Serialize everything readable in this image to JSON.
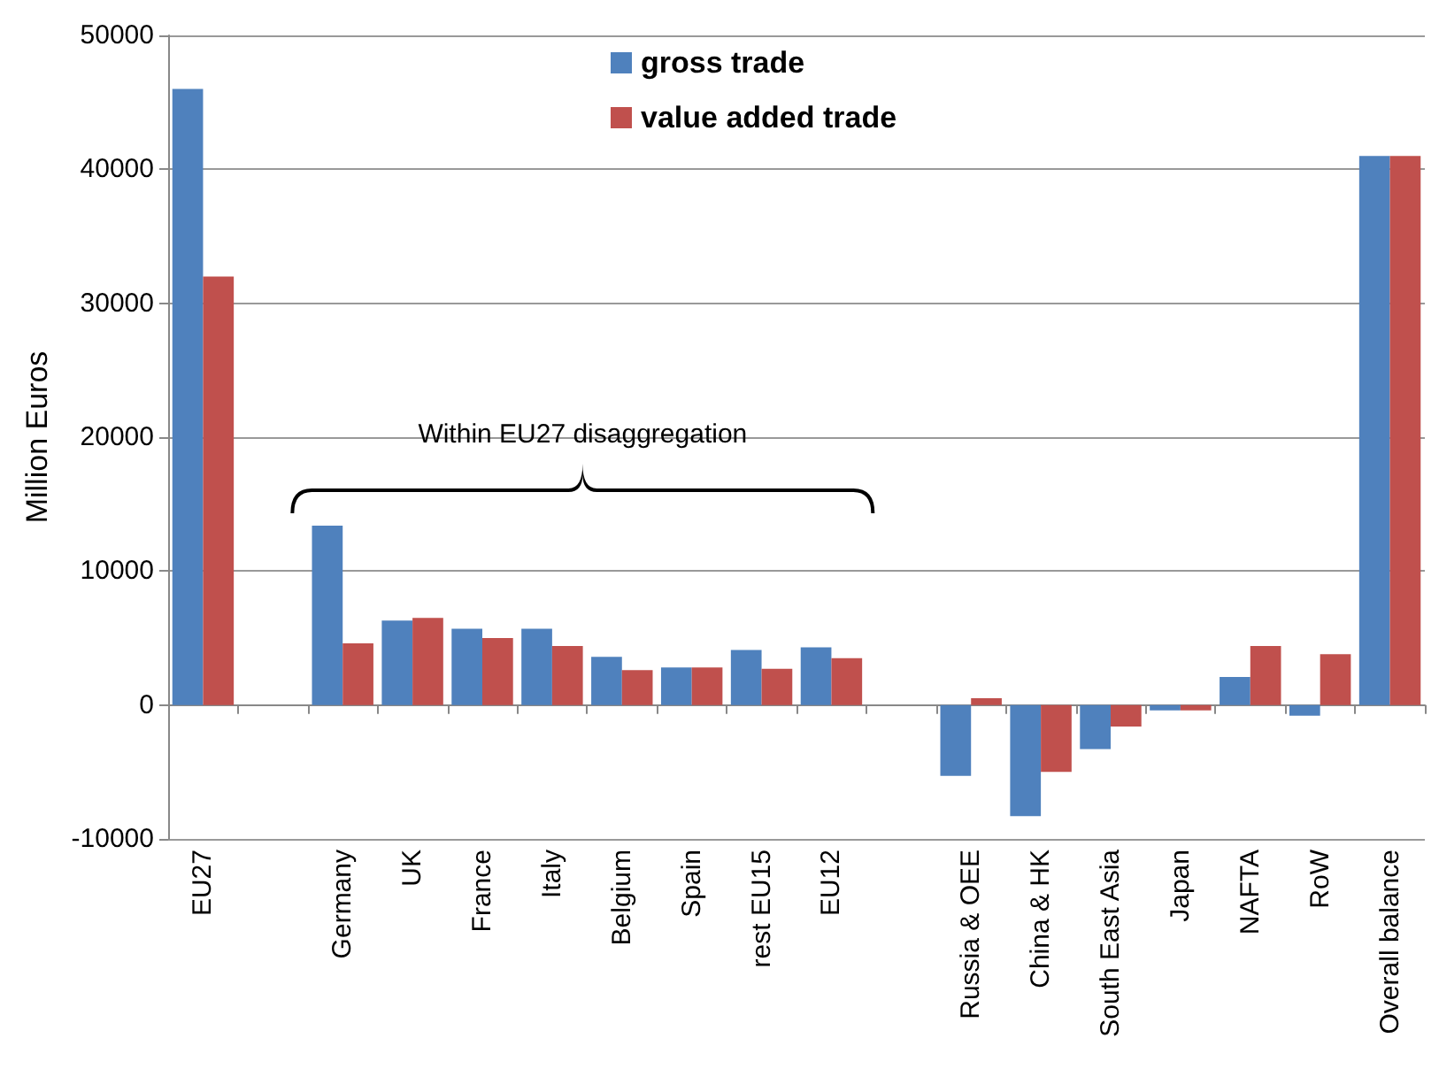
{
  "chart_data": {
    "type": "bar",
    "ylabel": "Million Euros",
    "categories": [
      "EU27",
      null,
      "Germany",
      "UK",
      "France",
      "Italy",
      "Belgium",
      "Spain",
      "rest EU15",
      "EU12",
      null,
      "Russia & OEE",
      "China & HK",
      "South East Asia",
      "Japan",
      "NAFTA",
      "RoW",
      "Overall balance"
    ],
    "series": [
      {
        "name": "gross trade",
        "color": "#4f81bd",
        "values": [
          46000,
          null,
          13400,
          6300,
          5700,
          5700,
          3600,
          2800,
          4100,
          4300,
          null,
          -5300,
          -8300,
          -3300,
          -400,
          2100,
          -800,
          41000
        ]
      },
      {
        "name": "value added trade",
        "color": "#c0504d",
        "values": [
          32000,
          null,
          4600,
          6500,
          5000,
          4400,
          2600,
          2800,
          2700,
          3500,
          null,
          500,
          -5000,
          -1600,
          -400,
          4400,
          3800,
          41000
        ]
      }
    ],
    "ylim": [
      -10000,
      50000
    ],
    "yticks": [
      -10000,
      0,
      10000,
      20000,
      30000,
      40000,
      50000
    ],
    "grid": "y",
    "legend": "top",
    "annotations": [
      "Within EU27 disaggregation"
    ]
  }
}
